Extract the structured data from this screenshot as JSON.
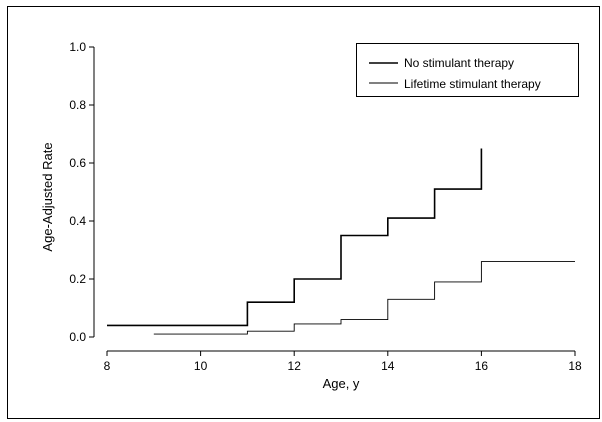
{
  "chart_data": {
    "type": "line",
    "step": true,
    "xlabel": "Age, y",
    "ylabel": "Age-Adjusted Rate",
    "xlim": [
      8,
      18
    ],
    "ylim": [
      0.0,
      1.0
    ],
    "xticks": [
      8,
      10,
      12,
      14,
      16,
      18
    ],
    "yticks": [
      "0.0",
      "0.2",
      "0.4",
      "0.6",
      "0.8",
      "1.0"
    ],
    "grid": false,
    "legend_position": "top-right",
    "series": [
      {
        "name": "No stimulant therapy",
        "color": "#000000",
        "stroke_weight": "heavy",
        "x": [
          8,
          11,
          12,
          13,
          14,
          15,
          16
        ],
        "y": [
          0.04,
          0.12,
          0.2,
          0.35,
          0.41,
          0.51,
          0.65
        ]
      },
      {
        "name": "Lifetime stimulant therapy",
        "color": "#000000",
        "stroke_weight": "light",
        "x": [
          9,
          11,
          12,
          13,
          14,
          15,
          16,
          18
        ],
        "y": [
          0.01,
          0.02,
          0.045,
          0.06,
          0.13,
          0.19,
          0.26,
          0.26
        ]
      }
    ]
  }
}
